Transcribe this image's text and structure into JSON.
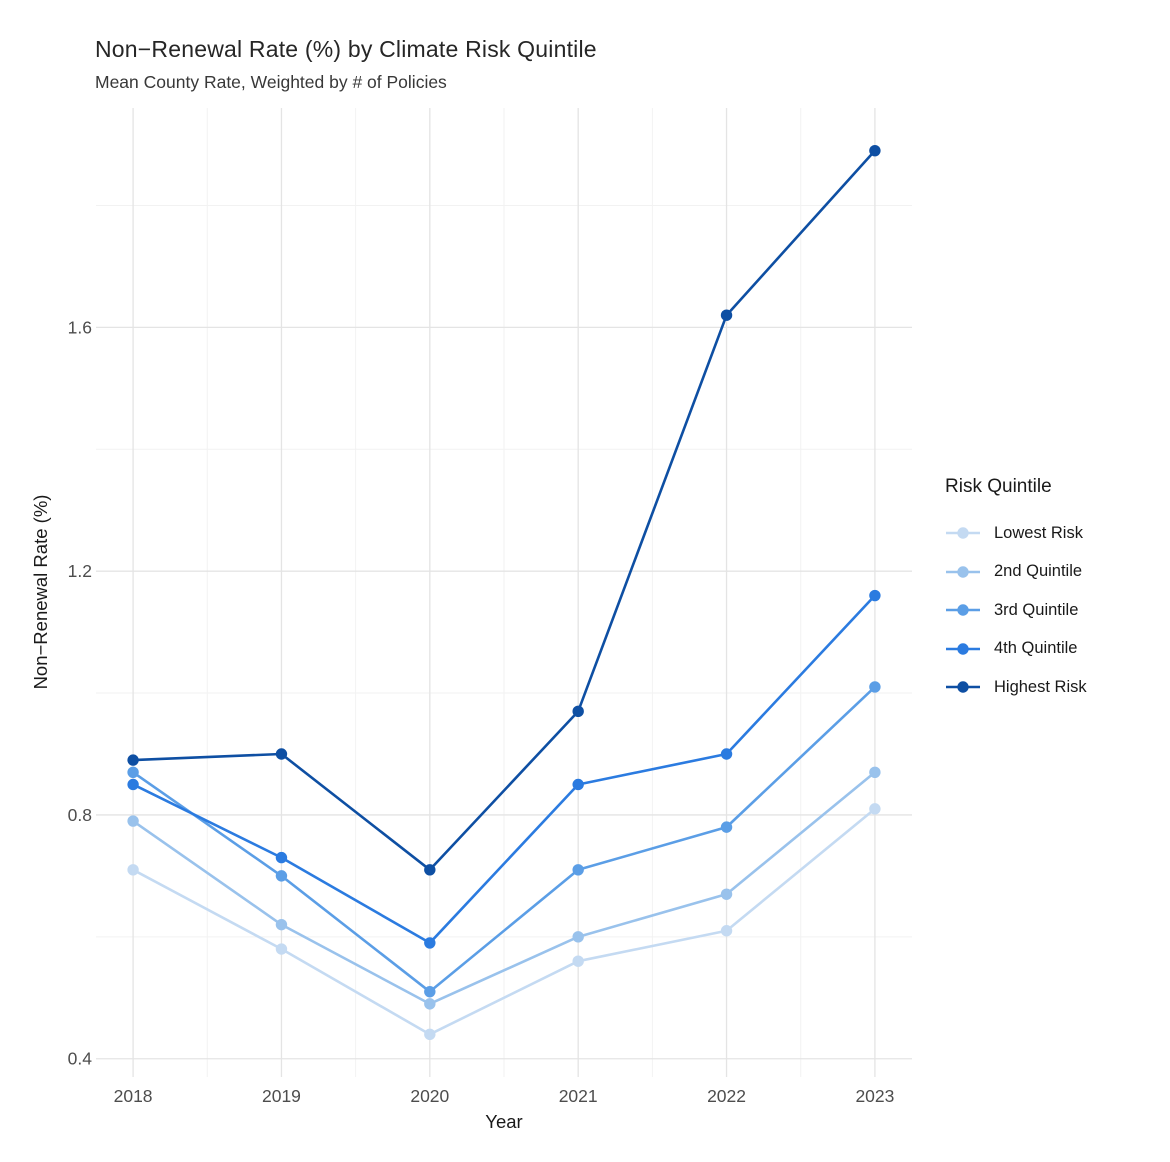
{
  "header": {
    "title": "Non−Renewal Rate (%) by Climate Risk Quintile",
    "subtitle": "Mean County Rate, Weighted by # of Policies"
  },
  "chart_data": {
    "type": "line",
    "x": [
      2018,
      2019,
      2020,
      2021,
      2022,
      2023
    ],
    "series": [
      {
        "name": "Lowest Risk",
        "color": "#C4DAF2",
        "values": [
          0.71,
          0.58,
          0.44,
          0.56,
          0.61,
          0.81
        ]
      },
      {
        "name": "2nd Quintile",
        "color": "#99C2EC",
        "values": [
          0.79,
          0.62,
          0.49,
          0.6,
          0.67,
          0.87
        ]
      },
      {
        "name": "3rd Quintile",
        "color": "#5B9EE6",
        "values": [
          0.87,
          0.7,
          0.51,
          0.71,
          0.78,
          1.01
        ]
      },
      {
        "name": "4th Quintile",
        "color": "#2B7BE0",
        "values": [
          0.85,
          0.73,
          0.59,
          0.85,
          0.9,
          1.16
        ]
      },
      {
        "name": "Highest Risk",
        "color": "#0E4FA3",
        "values": [
          0.89,
          0.9,
          0.71,
          0.97,
          1.62,
          1.89
        ]
      }
    ],
    "title": "Non−Renewal Rate (%) by Climate Risk Quintile",
    "subtitle": "Mean County Rate, Weighted by # of Policies",
    "xlabel": "Year",
    "ylabel": "Non−Renewal Rate (%)",
    "x_ticks": [
      "2018",
      "2019",
      "2020",
      "2021",
      "2022",
      "2023"
    ],
    "y_ticks": [
      "0.4",
      "0.8",
      "1.2",
      "1.6"
    ],
    "y_tick_values": [
      0.4,
      0.8,
      1.2,
      1.6
    ],
    "y_minor_values": [
      0.6,
      1.0,
      1.4,
      1.8
    ],
    "xlim": [
      2017.75,
      2023.25
    ],
    "ylim": [
      0.37,
      1.96
    ],
    "grid": "on",
    "legend": {
      "title": "Risk Quintile",
      "position": "right"
    }
  },
  "colors": {
    "background": "#FFFFFF",
    "grid_major": "#E4E4E4",
    "grid_minor": "#F2F2F2",
    "axis_text": "#4D4D4D",
    "text": "#1A1A1A"
  }
}
